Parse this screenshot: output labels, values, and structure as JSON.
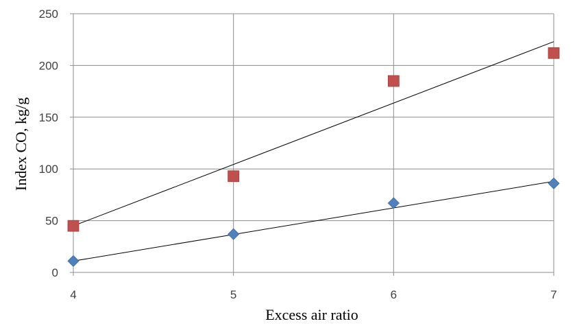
{
  "chart_data": {
    "type": "scatter",
    "xlabel": "Excess air ratio",
    "ylabel": "Index CO, kg/g",
    "xlim": [
      4,
      7
    ],
    "ylim": [
      0,
      250
    ],
    "x_ticks": [
      4,
      5,
      6,
      7
    ],
    "y_ticks": [
      0,
      50,
      100,
      150,
      200,
      250
    ],
    "grid": true,
    "series": [
      {
        "marker": "diamond",
        "color": "#4F81BD",
        "x": [
          4,
          5,
          6,
          7
        ],
        "y": [
          11,
          37,
          67,
          86
        ],
        "trendline": {
          "type": "linear",
          "y_start": 11,
          "y_end": 88
        }
      },
      {
        "marker": "square",
        "color": "#C0504D",
        "x": [
          4,
          5,
          6,
          7
        ],
        "y": [
          45,
          93,
          185,
          212
        ],
        "trendline": {
          "type": "linear",
          "y_start": 45,
          "y_end": 223
        }
      }
    ]
  }
}
